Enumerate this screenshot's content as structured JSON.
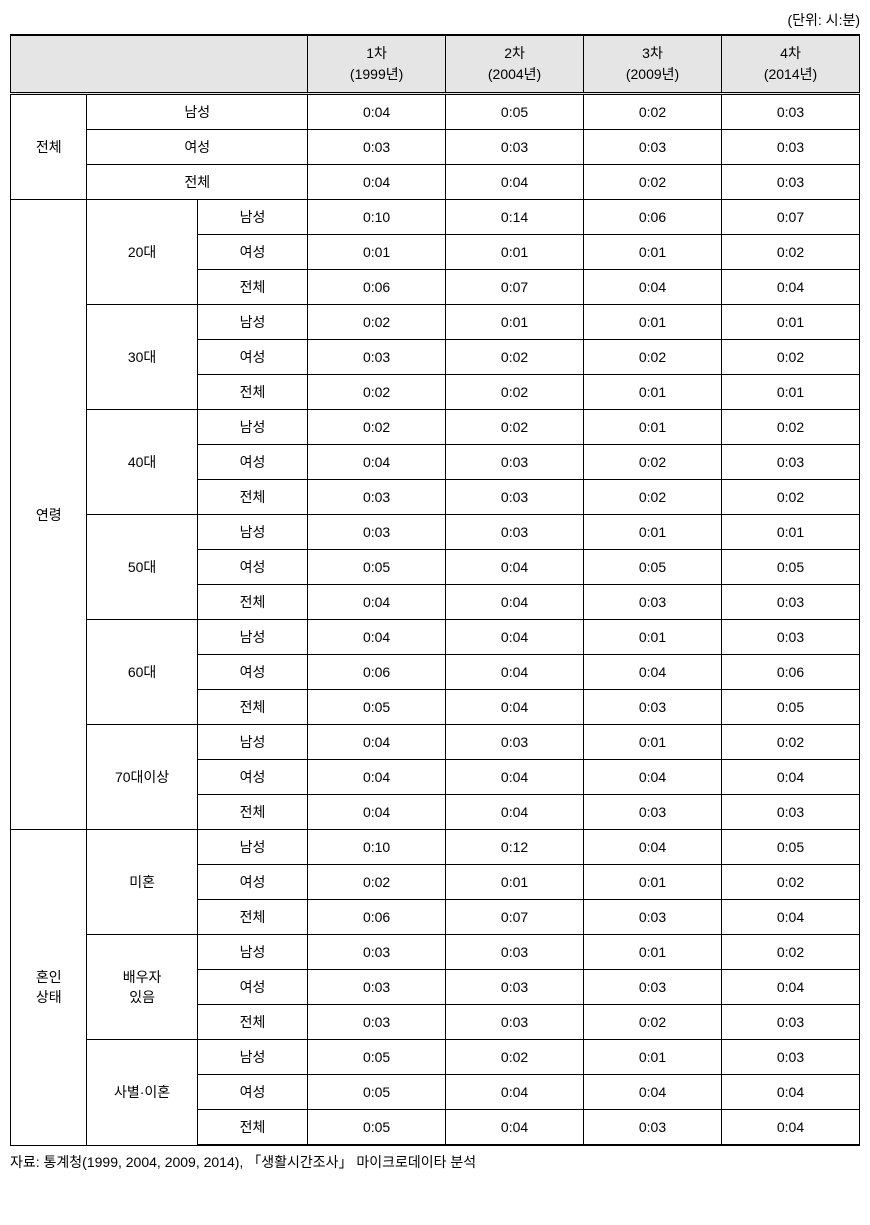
{
  "unit_label": "(단위: 시:분)",
  "columns": {
    "c1_line1": "1차",
    "c1_line2": "(1999년)",
    "c2_line1": "2차",
    "c2_line2": "(2004년)",
    "c3_line1": "3차",
    "c3_line2": "(2009년)",
    "c4_line1": "4차",
    "c4_line2": "(2014년)"
  },
  "groups": {
    "total": {
      "label": "전체",
      "rows": {
        "m": {
          "label": "남성",
          "c1": "0:04",
          "c2": "0:05",
          "c3": "0:02",
          "c4": "0:03"
        },
        "f": {
          "label": "여성",
          "c1": "0:03",
          "c2": "0:03",
          "c3": "0:03",
          "c4": "0:03"
        },
        "all": {
          "label": "전체",
          "c1": "0:04",
          "c2": "0:04",
          "c3": "0:02",
          "c4": "0:03"
        }
      }
    },
    "age": {
      "label": "연령",
      "subgroups": {
        "a20": {
          "label": "20대",
          "rows": {
            "m": {
              "label": "남성",
              "c1": "0:10",
              "c2": "0:14",
              "c3": "0:06",
              "c4": "0:07"
            },
            "f": {
              "label": "여성",
              "c1": "0:01",
              "c2": "0:01",
              "c3": "0:01",
              "c4": "0:02"
            },
            "all": {
              "label": "전체",
              "c1": "0:06",
              "c2": "0:07",
              "c3": "0:04",
              "c4": "0:04"
            }
          }
        },
        "a30": {
          "label": "30대",
          "rows": {
            "m": {
              "label": "남성",
              "c1": "0:02",
              "c2": "0:01",
              "c3": "0:01",
              "c4": "0:01"
            },
            "f": {
              "label": "여성",
              "c1": "0:03",
              "c2": "0:02",
              "c3": "0:02",
              "c4": "0:02"
            },
            "all": {
              "label": "전체",
              "c1": "0:02",
              "c2": "0:02",
              "c3": "0:01",
              "c4": "0:01"
            }
          }
        },
        "a40": {
          "label": "40대",
          "rows": {
            "m": {
              "label": "남성",
              "c1": "0:02",
              "c2": "0:02",
              "c3": "0:01",
              "c4": "0:02"
            },
            "f": {
              "label": "여성",
              "c1": "0:04",
              "c2": "0:03",
              "c3": "0:02",
              "c4": "0:03"
            },
            "all": {
              "label": "전체",
              "c1": "0:03",
              "c2": "0:03",
              "c3": "0:02",
              "c4": "0:02"
            }
          }
        },
        "a50": {
          "label": "50대",
          "rows": {
            "m": {
              "label": "남성",
              "c1": "0:03",
              "c2": "0:03",
              "c3": "0:01",
              "c4": "0:01"
            },
            "f": {
              "label": "여성",
              "c1": "0:05",
              "c2": "0:04",
              "c3": "0:05",
              "c4": "0:05"
            },
            "all": {
              "label": "전체",
              "c1": "0:04",
              "c2": "0:04",
              "c3": "0:03",
              "c4": "0:03"
            }
          }
        },
        "a60": {
          "label": "60대",
          "rows": {
            "m": {
              "label": "남성",
              "c1": "0:04",
              "c2": "0:04",
              "c3": "0:01",
              "c4": "0:03"
            },
            "f": {
              "label": "여성",
              "c1": "0:06",
              "c2": "0:04",
              "c3": "0:04",
              "c4": "0:06"
            },
            "all": {
              "label": "전체",
              "c1": "0:05",
              "c2": "0:04",
              "c3": "0:03",
              "c4": "0:05"
            }
          }
        },
        "a70": {
          "label": "70대이상",
          "rows": {
            "m": {
              "label": "남성",
              "c1": "0:04",
              "c2": "0:03",
              "c3": "0:01",
              "c4": "0:02"
            },
            "f": {
              "label": "여성",
              "c1": "0:04",
              "c2": "0:04",
              "c3": "0:04",
              "c4": "0:04"
            },
            "all": {
              "label": "전체",
              "c1": "0:04",
              "c2": "0:04",
              "c3": "0:03",
              "c4": "0:03"
            }
          }
        }
      }
    },
    "marital": {
      "label_line1": "혼인",
      "label_line2": "상태",
      "subgroups": {
        "single": {
          "label": "미혼",
          "rows": {
            "m": {
              "label": "남성",
              "c1": "0:10",
              "c2": "0:12",
              "c3": "0:04",
              "c4": "0:05"
            },
            "f": {
              "label": "여성",
              "c1": "0:02",
              "c2": "0:01",
              "c3": "0:01",
              "c4": "0:02"
            },
            "all": {
              "label": "전체",
              "c1": "0:06",
              "c2": "0:07",
              "c3": "0:03",
              "c4": "0:04"
            }
          }
        },
        "married": {
          "label_line1": "배우자",
          "label_line2": "있음",
          "rows": {
            "m": {
              "label": "남성",
              "c1": "0:03",
              "c2": "0:03",
              "c3": "0:01",
              "c4": "0:02"
            },
            "f": {
              "label": "여성",
              "c1": "0:03",
              "c2": "0:03",
              "c3": "0:03",
              "c4": "0:04"
            },
            "all": {
              "label": "전체",
              "c1": "0:03",
              "c2": "0:03",
              "c3": "0:02",
              "c4": "0:03"
            }
          }
        },
        "divorced": {
          "label": "사별·이혼",
          "rows": {
            "m": {
              "label": "남성",
              "c1": "0:05",
              "c2": "0:02",
              "c3": "0:01",
              "c4": "0:03"
            },
            "f": {
              "label": "여성",
              "c1": "0:05",
              "c2": "0:04",
              "c3": "0:04",
              "c4": "0:04"
            },
            "all": {
              "label": "전체",
              "c1": "0:05",
              "c2": "0:04",
              "c3": "0:03",
              "c4": "0:04"
            }
          }
        }
      }
    }
  },
  "source_note": "자료: 통계청(1999, 2004, 2009, 2014), 「생활시간조사」 마이크로데이타 분석"
}
